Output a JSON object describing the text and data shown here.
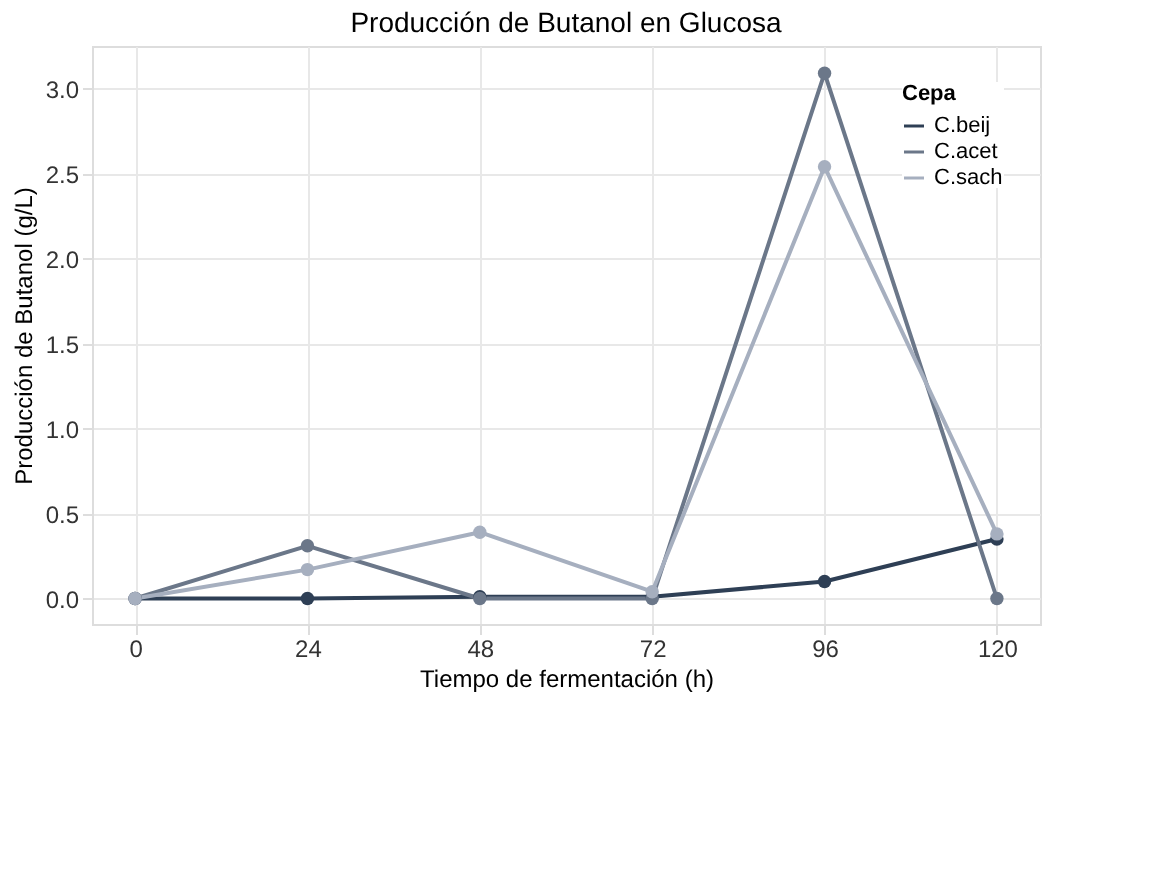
{
  "chart_data": {
    "type": "line",
    "title": "Producción de Butanol en Glucosa",
    "xlabel": "Tiempo de fermentación (h)",
    "ylabel": "Producción de Butanol (g/L)",
    "legend_title": "Cepa",
    "x": [
      0,
      24,
      48,
      72,
      96,
      120
    ],
    "series": [
      {
        "name": "C.beij",
        "color": "#2e3f55",
        "values": [
          0,
          0,
          0.01,
          0.01,
          0.1,
          0.35
        ]
      },
      {
        "name": "C.acet",
        "color": "#6b7789",
        "values": [
          0,
          0.31,
          0,
          0,
          3.09,
          0
        ]
      },
      {
        "name": "C.sach",
        "color": "#a6afbf",
        "values": [
          0,
          0.17,
          0.39,
          0.04,
          2.54,
          0.38
        ]
      }
    ],
    "xlim": [
      -6,
      126
    ],
    "xticks": [
      0,
      24,
      48,
      72,
      96,
      120
    ],
    "ylim": [
      -0.15,
      3.25
    ],
    "yticks": [
      {
        "value": 0,
        "label": "0.0"
      },
      0.5,
      {
        "value": 1,
        "label": "1.0"
      },
      1.5,
      {
        "value": 2,
        "label": "2.0"
      },
      2.5,
      {
        "value": 3,
        "label": "3.0"
      }
    ],
    "grid": true,
    "legend": "top right",
    "marker": "circle",
    "line_style": "solid"
  }
}
